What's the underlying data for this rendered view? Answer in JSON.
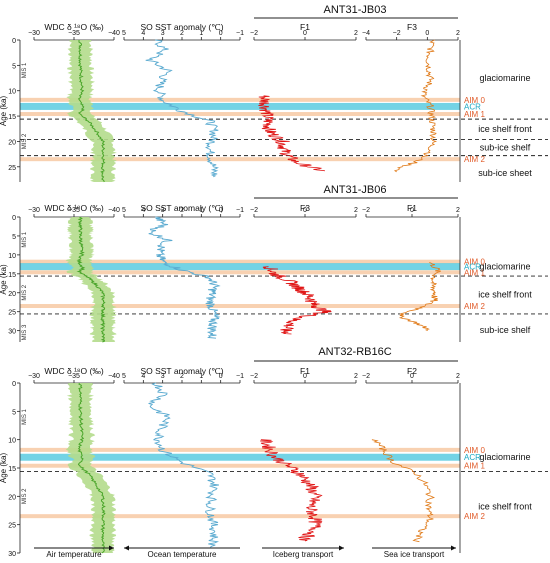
{
  "colors": {
    "wdc": "#4aa52a",
    "wdc_band": "#b4dc8c",
    "sst": "#5aaad0",
    "iceberg": "#e01414",
    "seaice": "#e07a18",
    "aim": "#f7c9a3",
    "acr": "#5bcbe0",
    "aim_label": "#e05a28",
    "acr_label": "#1aa7c2"
  },
  "chart_data": [
    {
      "type": "line",
      "title": "ANT31-JB03",
      "ylabel": "Age (ka)",
      "ylim": [
        0,
        28
      ],
      "yticks": [
        "0",
        "5",
        "10",
        "15",
        "20",
        "25"
      ],
      "panels": [
        {
          "label": "WDC δ ¹⁸O (‰)",
          "ticks": [
            "−30",
            "−35",
            "−40"
          ],
          "series": "wdc"
        },
        {
          "label": "SO SST anomaly (℃)",
          "ticks": [
            "5",
            "4",
            "3",
            "2",
            "1",
            "0",
            "−1"
          ],
          "series": "sst"
        },
        {
          "label": "F1",
          "ticks": [
            "−2",
            "0",
            "2"
          ],
          "series": "iceberg"
        },
        {
          "label": "F3",
          "ticks": [
            "−4",
            "−2",
            "0",
            "2"
          ],
          "series": "seaice"
        }
      ],
      "mis": [
        "MIS 1",
        "MIS 2"
      ],
      "events": [
        {
          "name": "AIM 0",
          "age": 11.8,
          "type": "aim"
        },
        {
          "name": "ACR",
          "age": 13.1,
          "type": "acr"
        },
        {
          "name": "AIM 1",
          "age": 14.6,
          "type": "aim"
        },
        {
          "name": "AIM 2",
          "age": 23.5,
          "type": "aim"
        }
      ],
      "dashes": [
        15.6,
        19.6,
        22.8
      ],
      "zones": [
        {
          "label": "glaciomarine",
          "age": 7.5
        },
        {
          "label": "ice shelf front",
          "age": 17.5
        },
        {
          "label": "sub-ice shelf",
          "age": 21.2
        },
        {
          "label": "sub-ice sheet",
          "age": 26.2
        }
      ]
    },
    {
      "type": "line",
      "title": "ANT31-JB06",
      "ylabel": "Age (ka)",
      "ylim": [
        0,
        33
      ],
      "yticks": [
        "0",
        "5",
        "10",
        "15",
        "20",
        "25",
        "30"
      ],
      "panels": [
        {
          "label": "WDC δ ¹⁸O (‰)",
          "ticks": [
            "−30",
            "−35",
            "−40"
          ],
          "series": "wdc"
        },
        {
          "label": "SO SST anomaly (℃)",
          "ticks": [
            "5",
            "4",
            "3",
            "2",
            "1",
            "0",
            "−1"
          ],
          "series": "sst"
        },
        {
          "label": "F3",
          "ticks": [
            "−2",
            "0",
            "2"
          ],
          "series": "iceberg"
        },
        {
          "label": "F1",
          "ticks": [
            "−2",
            "0",
            "2"
          ],
          "series": "seaice"
        }
      ],
      "mis": [
        "MIS 1",
        "MIS 2",
        "MIS 3"
      ],
      "events": [
        {
          "name": "AIM 0",
          "age": 11.8,
          "type": "aim"
        },
        {
          "name": "ACR",
          "age": 13.1,
          "type": "acr"
        },
        {
          "name": "AIM 1",
          "age": 14.6,
          "type": "aim"
        },
        {
          "name": "AIM 2",
          "age": 23.5,
          "type": "aim"
        }
      ],
      "dashes": [
        15.6,
        25.6
      ],
      "zones": [
        {
          "label": "glaciomarine",
          "age": 13.1
        },
        {
          "label": "ice shelf front",
          "age": 20.5
        },
        {
          "label": "sub-ice shelf",
          "age": 29.8
        }
      ]
    },
    {
      "type": "line",
      "title": "ANT32-RB16C",
      "ylabel": "Age (ka)",
      "ylim": [
        0,
        30
      ],
      "yticks": [
        "0",
        "5",
        "10",
        "15",
        "20",
        "25",
        "30"
      ],
      "panels": [
        {
          "label": "WDC δ ¹⁸O (‰)",
          "ticks": [
            "−30",
            "−35",
            "−40"
          ],
          "series": "wdc"
        },
        {
          "label": "SO SST anomaly (℃)",
          "ticks": [
            "5",
            "4",
            "3",
            "2",
            "1",
            "0",
            "−1"
          ],
          "series": "sst"
        },
        {
          "label": "F1",
          "ticks": [
            "−2",
            "0",
            "2"
          ],
          "series": "iceberg"
        },
        {
          "label": "F2",
          "ticks": [
            "−2",
            "0",
            "2"
          ],
          "series": "seaice"
        }
      ],
      "mis": [
        "MIS 1",
        "MIS 2"
      ],
      "events": [
        {
          "name": "AIM 0",
          "age": 11.8,
          "type": "aim"
        },
        {
          "name": "ACR",
          "age": 13.1,
          "type": "acr"
        },
        {
          "name": "AIM 1",
          "age": 14.6,
          "type": "aim"
        },
        {
          "name": "AIM 2",
          "age": 23.5,
          "type": "aim"
        }
      ],
      "dashes": [
        15.6
      ],
      "zones": [
        {
          "label": "glaciomarine",
          "age": 13.1
        },
        {
          "label": "ice shelf front",
          "age": 21.8
        }
      ],
      "arrows": [
        "Air temperature",
        "Ocean temperature",
        "Iceberg transport",
        "Sea ice transport"
      ]
    }
  ]
}
